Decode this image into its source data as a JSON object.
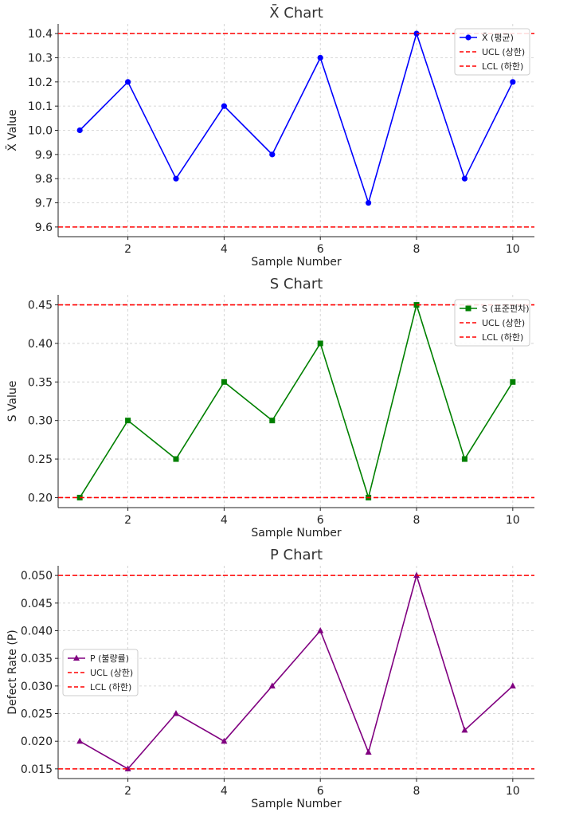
{
  "chart_data": [
    {
      "type": "line",
      "title": "X̄ Chart",
      "xlabel": "Sample Number",
      "ylabel": "X̄ Value",
      "x": [
        1,
        2,
        3,
        4,
        5,
        6,
        7,
        8,
        9,
        10
      ],
      "x_ticks": [
        2,
        4,
        6,
        8,
        10
      ],
      "y_ticks": [
        9.6,
        9.7,
        9.8,
        9.9,
        10.0,
        10.1,
        10.2,
        10.3,
        10.4
      ],
      "y_tick_labels": [
        "9.6",
        "9.7",
        "9.8",
        "9.9",
        "10.0",
        "10.1",
        "10.2",
        "10.3",
        "10.4"
      ],
      "ylim": [
        9.56,
        10.44
      ],
      "xlim": [
        0.55,
        10.45
      ],
      "grid": true,
      "legend_position": "top-right",
      "series": [
        {
          "name": "X̄ (평균)",
          "values": [
            10.0,
            10.2,
            9.8,
            10.1,
            9.9,
            10.3,
            9.7,
            10.4,
            9.8,
            10.2
          ],
          "color": "#0000ff",
          "marker": "circle"
        }
      ],
      "limits": [
        {
          "name": "UCL (상한)",
          "value": 10.4,
          "color": "#ff0000"
        },
        {
          "name": "LCL (하한)",
          "value": 9.6,
          "color": "#ff0000"
        }
      ]
    },
    {
      "type": "line",
      "title": "S Chart",
      "xlabel": "Sample Number",
      "ylabel": "S Value",
      "x": [
        1,
        2,
        3,
        4,
        5,
        6,
        7,
        8,
        9,
        10
      ],
      "x_ticks": [
        2,
        4,
        6,
        8,
        10
      ],
      "y_ticks": [
        0.2,
        0.25,
        0.3,
        0.35,
        0.4,
        0.45
      ],
      "y_tick_labels": [
        "0.20",
        "0.25",
        "0.30",
        "0.35",
        "0.40",
        "0.45"
      ],
      "ylim": [
        0.187,
        0.463
      ],
      "xlim": [
        0.55,
        10.45
      ],
      "grid": true,
      "legend_position": "top-right",
      "series": [
        {
          "name": "S (표준편차)",
          "values": [
            0.2,
            0.3,
            0.25,
            0.35,
            0.3,
            0.4,
            0.2,
            0.45,
            0.25,
            0.35
          ],
          "color": "#008000",
          "marker": "square"
        }
      ],
      "limits": [
        {
          "name": "UCL (상한)",
          "value": 0.45,
          "color": "#ff0000"
        },
        {
          "name": "LCL (하한)",
          "value": 0.2,
          "color": "#ff0000"
        }
      ]
    },
    {
      "type": "line",
      "title": "P Chart",
      "xlabel": "Sample Number",
      "ylabel": "Defect Rate (P)",
      "x": [
        1,
        2,
        3,
        4,
        5,
        6,
        7,
        8,
        9,
        10
      ],
      "x_ticks": [
        2,
        4,
        6,
        8,
        10
      ],
      "y_ticks": [
        0.015,
        0.02,
        0.025,
        0.03,
        0.035,
        0.04,
        0.045,
        0.05
      ],
      "y_tick_labels": [
        "0.015",
        "0.020",
        "0.025",
        "0.030",
        "0.035",
        "0.040",
        "0.045",
        "0.050"
      ],
      "ylim": [
        0.01325,
        0.05175
      ],
      "xlim": [
        0.55,
        10.45
      ],
      "grid": true,
      "legend_position": "center-left",
      "series": [
        {
          "name": "P (불량률)",
          "values": [
            0.02,
            0.015,
            0.025,
            0.02,
            0.03,
            0.04,
            0.018,
            0.05,
            0.022,
            0.03
          ],
          "color": "#800080",
          "marker": "triangle"
        }
      ],
      "limits": [
        {
          "name": "UCL (상한)",
          "value": 0.05,
          "color": "#ff0000"
        },
        {
          "name": "LCL (하한)",
          "value": 0.015,
          "color": "#ff0000"
        }
      ]
    }
  ]
}
